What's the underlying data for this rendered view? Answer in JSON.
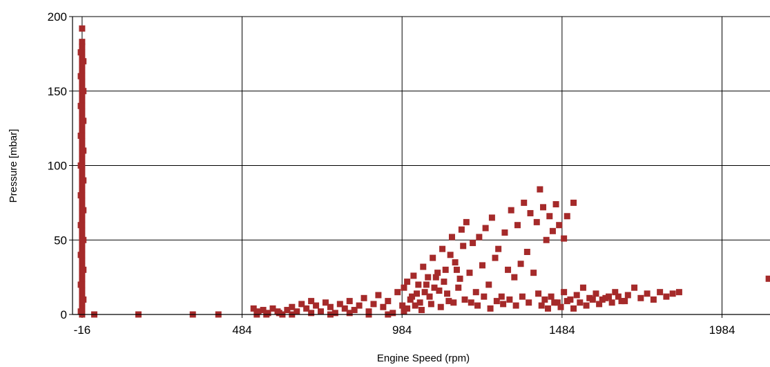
{
  "chart_data": {
    "type": "scatter",
    "xlabel": "Engine Speed (rpm)",
    "ylabel": "Pressure [mbar]",
    "xlim": [
      -46,
      2134
    ],
    "ylim": [
      0,
      200
    ],
    "x_ticks": [
      -16,
      484,
      984,
      1484,
      1984
    ],
    "y_ticks": [
      0,
      50,
      100,
      150,
      200
    ],
    "grid": true,
    "legend": "none",
    "marker_color": "#a52a2a",
    "series": [
      {
        "points": [
          [
            -16,
            192
          ],
          [
            -16,
            183
          ],
          [
            -16,
            180
          ],
          [
            -16,
            176
          ],
          [
            -16,
            172
          ],
          [
            -16,
            168
          ],
          [
            -16,
            164
          ],
          [
            -16,
            160
          ],
          [
            -16,
            156
          ],
          [
            -16,
            152
          ],
          [
            -16,
            148
          ],
          [
            -16,
            144
          ],
          [
            -16,
            140
          ],
          [
            -16,
            136
          ],
          [
            -16,
            132
          ],
          [
            -16,
            128
          ],
          [
            -16,
            124
          ],
          [
            -16,
            120
          ],
          [
            -16,
            116
          ],
          [
            -16,
            112
          ],
          [
            -16,
            108
          ],
          [
            -16,
            104
          ],
          [
            -16,
            100
          ],
          [
            -16,
            96
          ],
          [
            -16,
            92
          ],
          [
            -16,
            88
          ],
          [
            -16,
            84
          ],
          [
            -16,
            80
          ],
          [
            -16,
            76
          ],
          [
            -16,
            72
          ],
          [
            -16,
            68
          ],
          [
            -16,
            64
          ],
          [
            -16,
            60
          ],
          [
            -16,
            56
          ],
          [
            -16,
            52
          ],
          [
            -16,
            48
          ],
          [
            -16,
            44
          ],
          [
            -16,
            40
          ],
          [
            -16,
            36
          ],
          [
            -16,
            32
          ],
          [
            -16,
            28
          ],
          [
            -16,
            24
          ],
          [
            -16,
            20
          ],
          [
            -16,
            16
          ],
          [
            -16,
            12
          ],
          [
            -16,
            8
          ],
          [
            -16,
            4
          ],
          [
            -16,
            0
          ],
          [
            -20,
            176
          ],
          [
            -20,
            160
          ],
          [
            -20,
            140
          ],
          [
            -20,
            120
          ],
          [
            -20,
            100
          ],
          [
            -20,
            80
          ],
          [
            -20,
            60
          ],
          [
            -20,
            40
          ],
          [
            -20,
            20
          ],
          [
            -20,
            2
          ],
          [
            -12,
            170
          ],
          [
            -12,
            150
          ],
          [
            -12,
            130
          ],
          [
            -12,
            110
          ],
          [
            -12,
            90
          ],
          [
            -12,
            70
          ],
          [
            -12,
            50
          ],
          [
            -12,
            30
          ],
          [
            -12,
            10
          ],
          [
            22,
            0
          ],
          [
            160,
            0
          ],
          [
            330,
            0
          ],
          [
            410,
            0
          ],
          [
            520,
            4
          ],
          [
            535,
            2
          ],
          [
            550,
            3
          ],
          [
            565,
            1
          ],
          [
            580,
            4
          ],
          [
            595,
            2
          ],
          [
            610,
            0
          ],
          [
            625,
            3
          ],
          [
            640,
            5
          ],
          [
            655,
            2
          ],
          [
            670,
            7
          ],
          [
            685,
            4
          ],
          [
            700,
            9
          ],
          [
            715,
            6
          ],
          [
            730,
            2
          ],
          [
            745,
            8
          ],
          [
            760,
            5
          ],
          [
            775,
            1
          ],
          [
            790,
            7
          ],
          [
            805,
            4
          ],
          [
            820,
            9
          ],
          [
            835,
            3
          ],
          [
            850,
            6
          ],
          [
            865,
            11
          ],
          [
            880,
            2
          ],
          [
            895,
            7
          ],
          [
            910,
            13
          ],
          [
            925,
            5
          ],
          [
            940,
            9
          ],
          [
            955,
            1
          ],
          [
            970,
            15
          ],
          [
            985,
            6
          ],
          [
            530,
            0
          ],
          [
            560,
            0
          ],
          [
            600,
            1
          ],
          [
            640,
            0
          ],
          [
            700,
            1
          ],
          [
            760,
            0
          ],
          [
            820,
            1
          ],
          [
            880,
            0
          ],
          [
            940,
            0
          ],
          [
            990,
            2
          ],
          [
            990,
            18
          ],
          [
            1000,
            22
          ],
          [
            1010,
            10
          ],
          [
            1020,
            26
          ],
          [
            1030,
            14
          ],
          [
            1040,
            8
          ],
          [
            1050,
            32
          ],
          [
            1060,
            20
          ],
          [
            1070,
            12
          ],
          [
            1080,
            38
          ],
          [
            1090,
            25
          ],
          [
            1100,
            16
          ],
          [
            1110,
            44
          ],
          [
            1120,
            30
          ],
          [
            1130,
            9
          ],
          [
            1140,
            52
          ],
          [
            1150,
            35
          ],
          [
            1160,
            18
          ],
          [
            1000,
            4
          ],
          [
            1015,
            12
          ],
          [
            1025,
            6
          ],
          [
            1035,
            20
          ],
          [
            1045,
            3
          ],
          [
            1055,
            15
          ],
          [
            1065,
            25
          ],
          [
            1075,
            7
          ],
          [
            1085,
            18
          ],
          [
            1095,
            28
          ],
          [
            1105,
            5
          ],
          [
            1115,
            22
          ],
          [
            1125,
            14
          ],
          [
            1135,
            40
          ],
          [
            1145,
            8
          ],
          [
            1155,
            30
          ],
          [
            1165,
            24
          ],
          [
            1175,
            46
          ],
          [
            1170,
            57
          ],
          [
            1185,
            62
          ],
          [
            1195,
            28
          ],
          [
            1205,
            48
          ],
          [
            1215,
            15
          ],
          [
            1225,
            52
          ],
          [
            1235,
            33
          ],
          [
            1245,
            58
          ],
          [
            1255,
            20
          ],
          [
            1265,
            65
          ],
          [
            1275,
            38
          ],
          [
            1285,
            44
          ],
          [
            1295,
            12
          ],
          [
            1305,
            55
          ],
          [
            1315,
            30
          ],
          [
            1325,
            70
          ],
          [
            1335,
            25
          ],
          [
            1345,
            60
          ],
          [
            1355,
            34
          ],
          [
            1365,
            75
          ],
          [
            1375,
            42
          ],
          [
            1385,
            68
          ],
          [
            1395,
            28
          ],
          [
            1405,
            62
          ],
          [
            1415,
            84
          ],
          [
            1425,
            72
          ],
          [
            1435,
            50
          ],
          [
            1445,
            66
          ],
          [
            1455,
            56
          ],
          [
            1465,
            74
          ],
          [
            1475,
            60
          ],
          [
            1490,
            51
          ],
          [
            1500,
            66
          ],
          [
            1520,
            75
          ],
          [
            1180,
            10
          ],
          [
            1200,
            8
          ],
          [
            1220,
            6
          ],
          [
            1240,
            12
          ],
          [
            1260,
            4
          ],
          [
            1280,
            9
          ],
          [
            1300,
            7
          ],
          [
            1320,
            10
          ],
          [
            1340,
            6
          ],
          [
            1360,
            12
          ],
          [
            1380,
            8
          ],
          [
            1410,
            14
          ],
          [
            1430,
            10
          ],
          [
            1450,
            12
          ],
          [
            1470,
            8
          ],
          [
            1490,
            15
          ],
          [
            1510,
            10
          ],
          [
            1530,
            13
          ],
          [
            1550,
            18
          ],
          [
            1570,
            11
          ],
          [
            1590,
            14
          ],
          [
            1610,
            10
          ],
          [
            1630,
            12
          ],
          [
            1650,
            15
          ],
          [
            1670,
            9
          ],
          [
            1690,
            13
          ],
          [
            1710,
            18
          ],
          [
            1730,
            11
          ],
          [
            1750,
            14
          ],
          [
            1770,
            10
          ],
          [
            1790,
            15
          ],
          [
            1810,
            12
          ],
          [
            1830,
            14
          ],
          [
            1850,
            15
          ],
          [
            1420,
            6
          ],
          [
            1440,
            4
          ],
          [
            1460,
            8
          ],
          [
            1480,
            5
          ],
          [
            1500,
            9
          ],
          [
            1520,
            4
          ],
          [
            1540,
            8
          ],
          [
            1560,
            6
          ],
          [
            1580,
            10
          ],
          [
            1600,
            7
          ],
          [
            1620,
            11
          ],
          [
            1640,
            8
          ],
          [
            1660,
            12
          ],
          [
            1680,
            9
          ],
          [
            2130,
            24
          ]
        ]
      }
    ]
  }
}
